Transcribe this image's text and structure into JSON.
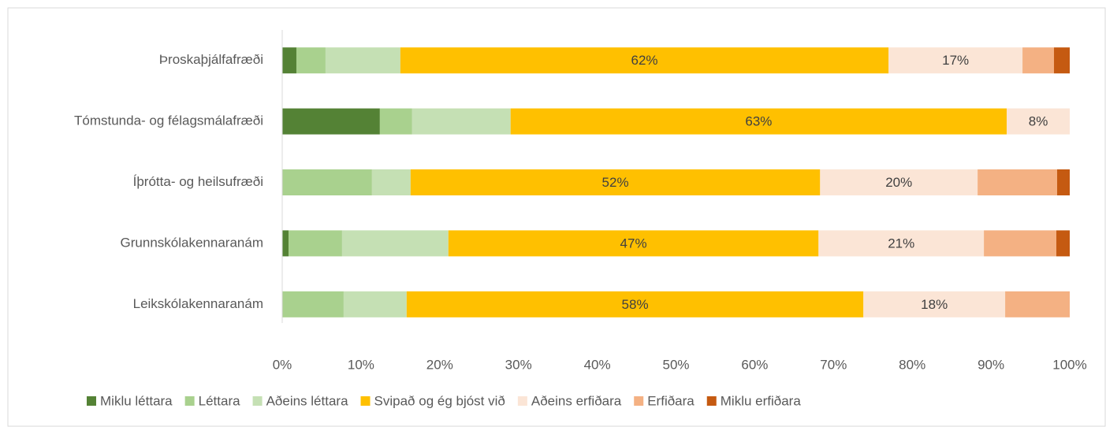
{
  "chart_data": {
    "type": "stacked_barh",
    "categories": [
      "Þroskaþjálfafræði",
      "Tómstunda- og félagsmálafræði",
      "Íþrótta- og heilsufræði",
      "Grunnskólakennaranám",
      "Leikskólakennaranám"
    ],
    "series": [
      {
        "name": "Miklu léttara",
        "color": "#548235",
        "values": [
          1.8,
          12.4,
          0,
          0.8,
          0
        ]
      },
      {
        "name": "Léttara",
        "color": "#a9d18e",
        "values": [
          3.7,
          4.1,
          11.4,
          6.8,
          7.8
        ]
      },
      {
        "name": "Aðeins léttara",
        "color": "#c5e0b4",
        "values": [
          9.5,
          12.5,
          4.9,
          13.5,
          8
        ]
      },
      {
        "name": "Svipað og ég bjóst við",
        "color": "#ffc000",
        "values": [
          62,
          63,
          52,
          47,
          58
        ],
        "value_labels": [
          "62%",
          "63%",
          "52%",
          "47%",
          "58%"
        ]
      },
      {
        "name": "Aðeins erfiðara",
        "color": "#fbe5d6",
        "values": [
          17,
          8,
          20,
          21,
          18
        ],
        "value_labels": [
          "17%",
          "8%",
          "20%",
          "21%",
          "18%"
        ]
      },
      {
        "name": "Erfiðara",
        "color": "#f4b183",
        "values": [
          4,
          0,
          10.1,
          9.2,
          8.2
        ]
      },
      {
        "name": "Miklu erfiðara",
        "color": "#c55a11",
        "values": [
          2,
          0,
          1.6,
          1.7,
          0
        ]
      }
    ],
    "xlim": [
      0,
      100
    ],
    "xticks": [
      {
        "value": 0,
        "label": "0%"
      },
      {
        "value": 10,
        "label": "10%"
      },
      {
        "value": 20,
        "label": "20%"
      },
      {
        "value": 30,
        "label": "30%"
      },
      {
        "value": 40,
        "label": "40%"
      },
      {
        "value": 50,
        "label": "50%"
      },
      {
        "value": 60,
        "label": "60%"
      },
      {
        "value": 70,
        "label": "70%"
      },
      {
        "value": 80,
        "label": "80%"
      },
      {
        "value": 90,
        "label": "90%"
      },
      {
        "value": 100,
        "label": "100%"
      }
    ],
    "legend": "bottom"
  }
}
